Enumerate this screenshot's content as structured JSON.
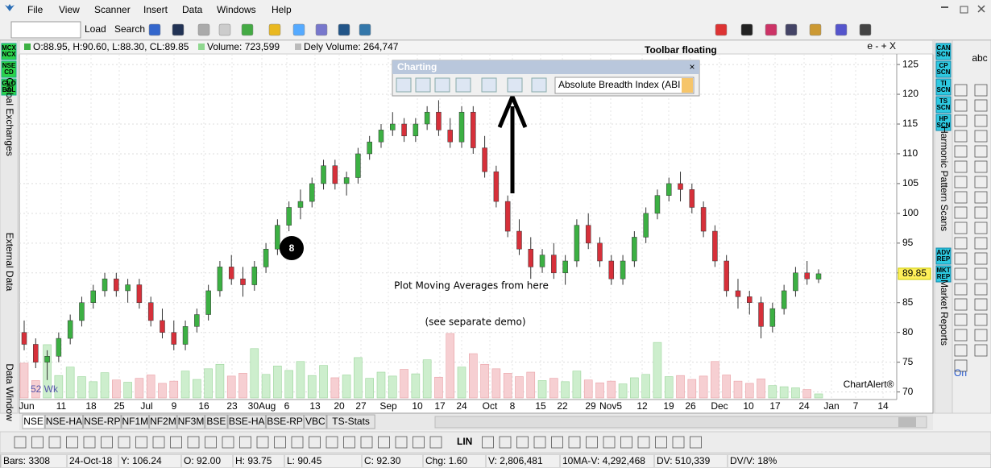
{
  "menu": [
    "File",
    "View",
    "Scanner",
    "Insert",
    "Data",
    "Windows",
    "Help"
  ],
  "toolbar": {
    "load": "Load",
    "search": "Search"
  },
  "info_bar": {
    "ohlc": "O:88.95, H:90.60, L:88.30, CL:89.85",
    "volume": "Volume: 723,599",
    "dely_volume": "Dely Volume: 264,747",
    "controls": "e - + X"
  },
  "left_panel": {
    "buttons": [
      [
        "MCX",
        "NCX"
      ],
      [
        "NSE",
        "CD"
      ],
      [
        "GLO",
        "BAL"
      ]
    ],
    "labels": [
      "Global Exchanges",
      "External Data",
      "Data Window"
    ]
  },
  "right_panel": {
    "scan_buttons": [
      [
        "CAN",
        "SCN"
      ],
      [
        "CP",
        "SCN"
      ],
      [
        "TI",
        "SCN"
      ],
      [
        "TS",
        "SCN"
      ],
      [
        "HP",
        "SCN"
      ]
    ],
    "report_buttons": [
      [
        "ADV",
        "REP"
      ],
      [
        "MKT",
        "REP"
      ]
    ],
    "labels": [
      "Harmonic Pattern Scans",
      "Market Reports"
    ]
  },
  "right_tools": [
    "abc",
    "On"
  ],
  "floating_toolbar": {
    "title": "Charting",
    "close": "×",
    "dropdown": "Absolute Breadth Index (ABI"
  },
  "annotations": {
    "toolbar_floating": "Toolbar floating",
    "step": "8",
    "line1": "Plot Moving Averages from here",
    "line2": "(see separate demo)",
    "watermark": "ChartAlert®",
    "week_label": "52 Wk"
  },
  "chart": {
    "type": "candlestick",
    "ylim": [
      69,
      126.5
    ],
    "yticks": [
      70,
      75,
      80,
      85,
      90,
      95,
      100,
      105,
      110,
      115,
      120,
      125
    ],
    "grid": true,
    "last_price": "89.85",
    "x_labels": [
      "Jun",
      "11",
      "18",
      "25",
      "Jul",
      "9",
      "16",
      "23",
      "30Aug",
      "6",
      "13",
      "20",
      "27",
      "Sep",
      "10",
      "17",
      "24",
      "Oct",
      "8",
      "15",
      "22",
      "29",
      "Nov5",
      "12",
      "19",
      "26",
      "Dec",
      "10",
      "17",
      "24",
      "Jan",
      "7",
      "14"
    ],
    "up_color": "#3cb043",
    "down_color": "#d6303a",
    "candles": [
      [
        80,
        82,
        77,
        78
      ],
      [
        78,
        79,
        74,
        75
      ],
      [
        75,
        77,
        72,
        76
      ],
      [
        76,
        80,
        75,
        79
      ],
      [
        79,
        83,
        78,
        82
      ],
      [
        82,
        86,
        81,
        85
      ],
      [
        85,
        88,
        84,
        87
      ],
      [
        87,
        90,
        86,
        89
      ],
      [
        89,
        90,
        86,
        87
      ],
      [
        87,
        89,
        85,
        88
      ],
      [
        88,
        89,
        84,
        85
      ],
      [
        85,
        86,
        81,
        82
      ],
      [
        82,
        84,
        79,
        80
      ],
      [
        80,
        82,
        77,
        78
      ],
      [
        78,
        82,
        77,
        81
      ],
      [
        81,
        84,
        80,
        83
      ],
      [
        83,
        88,
        82,
        87
      ],
      [
        87,
        92,
        86,
        91
      ],
      [
        91,
        93,
        88,
        89
      ],
      [
        89,
        91,
        86,
        88
      ],
      [
        88,
        92,
        87,
        91
      ],
      [
        91,
        95,
        90,
        94
      ],
      [
        94,
        99,
        93,
        98
      ],
      [
        98,
        102,
        97,
        101
      ],
      [
        101,
        104,
        99,
        102
      ],
      [
        102,
        106,
        101,
        105
      ],
      [
        105,
        109,
        104,
        108
      ],
      [
        108,
        109,
        104,
        105
      ],
      [
        105,
        107,
        103,
        106
      ],
      [
        106,
        111,
        105,
        110
      ],
      [
        110,
        113,
        109,
        112
      ],
      [
        112,
        115,
        111,
        114
      ],
      [
        114,
        117,
        113,
        115
      ],
      [
        115,
        116,
        112,
        113
      ],
      [
        113,
        116,
        112,
        115
      ],
      [
        115,
        118,
        114,
        117
      ],
      [
        117,
        119,
        113,
        114
      ],
      [
        114,
        116,
        111,
        112
      ],
      [
        112,
        118,
        111,
        117
      ],
      [
        117,
        118,
        110,
        111
      ],
      [
        111,
        113,
        106,
        107
      ],
      [
        107,
        108,
        101,
        102
      ],
      [
        102,
        103,
        96,
        97
      ],
      [
        97,
        99,
        93,
        94
      ],
      [
        94,
        96,
        89,
        91
      ],
      [
        91,
        94,
        90,
        93
      ],
      [
        93,
        95,
        89,
        90
      ],
      [
        90,
        93,
        88,
        92
      ],
      [
        92,
        99,
        91,
        98
      ],
      [
        98,
        100,
        94,
        95
      ],
      [
        95,
        96,
        91,
        92
      ],
      [
        92,
        93,
        88,
        89
      ],
      [
        89,
        93,
        88,
        92
      ],
      [
        92,
        97,
        91,
        96
      ],
      [
        96,
        101,
        95,
        100
      ],
      [
        100,
        104,
        99,
        103
      ],
      [
        103,
        106,
        102,
        105
      ],
      [
        105,
        107,
        102,
        104
      ],
      [
        104,
        105,
        100,
        101
      ],
      [
        101,
        102,
        96,
        97
      ],
      [
        97,
        98,
        91,
        92
      ],
      [
        92,
        93,
        86,
        87
      ],
      [
        87,
        89,
        84,
        86
      ],
      [
        86,
        87,
        83,
        85
      ],
      [
        85,
        86,
        79,
        81
      ],
      [
        81,
        85,
        80,
        84
      ],
      [
        84,
        88,
        83,
        87
      ],
      [
        87,
        91,
        86,
        90
      ],
      [
        90,
        92,
        88,
        89
      ],
      [
        88.95,
        90.6,
        88.3,
        89.85
      ]
    ],
    "volumes": [
      6200000,
      3100000,
      9500000,
      4000000,
      5500000,
      3800000,
      2900000,
      4500000,
      3200000,
      2800000,
      3500000,
      4100000,
      2600000,
      3000000,
      4800000,
      3300000,
      5200000,
      6000000,
      3900000,
      4400000,
      8800000,
      4200000,
      5700000,
      4900000,
      6500000,
      4000000,
      5800000,
      3600000,
      4100000,
      7200000,
      3500000,
      4600000,
      3900000,
      5100000,
      4300000,
      6800000,
      3700000,
      11500000,
      5500000,
      7900000,
      6000000,
      5200000,
      4400000,
      3800000,
      4600000,
      3100000,
      3500000,
      2900000,
      4800000,
      3200000,
      2700000,
      3000000,
      2500000,
      3600000,
      4200000,
      9900000,
      3800000,
      4000000,
      3300000,
      3900000,
      6500000,
      4100000,
      3000000,
      2600000,
      3400000,
      2200000,
      2000000,
      1800000,
      1500000,
      723599
    ]
  },
  "tabs": [
    "NSE",
    "NSE-HA",
    "NSE-RP",
    "NF1M",
    "NF2M",
    "NF3M",
    "BSE",
    "BSE-HA",
    "BSE-RP",
    "VBC",
    "TS-Stats"
  ],
  "bottom_toolbar": {
    "lin": "LIN"
  },
  "status_bar": [
    "Bars: 3308",
    "24-Oct-18",
    "Y: 106.24",
    "O: 92.00",
    "H: 93.75",
    "L: 90.45",
    "C: 92.30",
    "Chg: 1.60",
    "V: 2,806,481",
    "10MA-V: 4,292,468",
    "DV: 510,339",
    "DV/V: 18%"
  ]
}
